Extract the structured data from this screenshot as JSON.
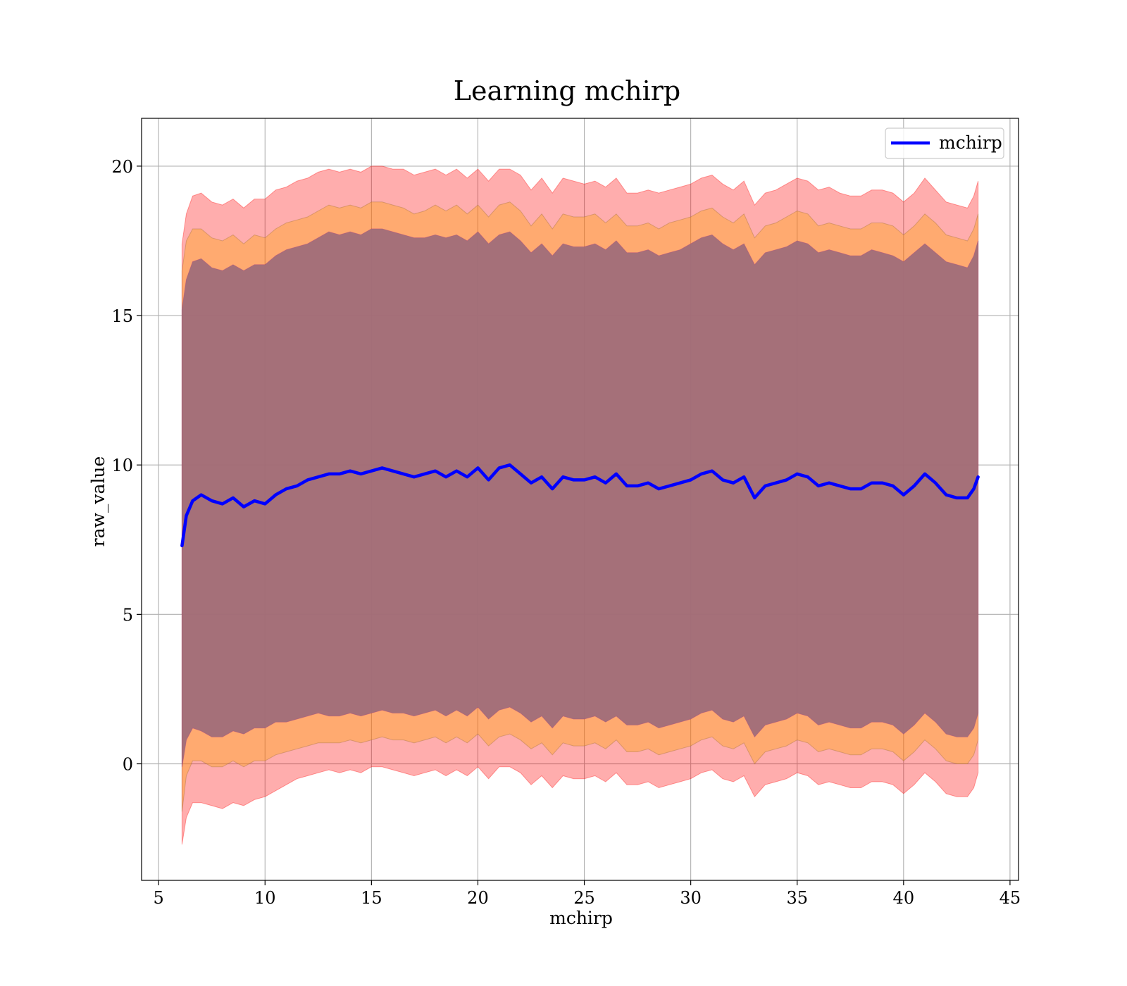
{
  "chart_data": {
    "type": "line",
    "title": "Learning mchirp",
    "xlabel": "mchirp",
    "ylabel": "raw_value",
    "xlim": [
      4.2,
      45.4
    ],
    "ylim": [
      -3.9,
      21.6
    ],
    "xticks": [
      5,
      10,
      15,
      20,
      25,
      30,
      35,
      40,
      45
    ],
    "yticks": [
      0,
      5,
      10,
      15,
      20
    ],
    "grid": true,
    "legend": {
      "position": "top-right",
      "entries": [
        "mchirp"
      ]
    },
    "colors": {
      "line": "#0000ff",
      "band_3sigma": "#ff0000",
      "band_2sigma": "#ffa500",
      "band_1sigma": "#800080",
      "inner_fill": "#a0707a",
      "grid": "#b0b0b0"
    },
    "series": [
      {
        "name": "mchirp",
        "x": [
          6.1,
          6.3,
          6.6,
          7.0,
          7.5,
          8.0,
          8.5,
          9.0,
          9.5,
          10.0,
          10.5,
          11.0,
          11.5,
          12.0,
          12.5,
          13.0,
          13.5,
          14.0,
          14.5,
          15.0,
          15.5,
          16.0,
          16.5,
          17.0,
          17.5,
          18.0,
          18.5,
          19.0,
          19.5,
          20.0,
          20.5,
          21.0,
          21.5,
          22.0,
          22.5,
          23.0,
          23.5,
          24.0,
          24.5,
          25.0,
          25.5,
          26.0,
          26.5,
          27.0,
          27.5,
          28.0,
          28.5,
          29.0,
          29.5,
          30.0,
          30.5,
          31.0,
          31.5,
          32.0,
          32.5,
          33.0,
          33.5,
          34.0,
          34.5,
          35.0,
          35.5,
          36.0,
          36.5,
          37.0,
          37.5,
          38.0,
          38.5,
          39.0,
          39.5,
          40.0,
          40.5,
          41.0,
          41.5,
          42.0,
          42.5,
          43.0,
          43.3,
          43.5
        ],
        "y": [
          7.3,
          8.3,
          8.8,
          9.0,
          8.8,
          8.7,
          8.9,
          8.6,
          8.8,
          8.7,
          9.0,
          9.2,
          9.3,
          9.5,
          9.6,
          9.7,
          9.7,
          9.8,
          9.7,
          9.8,
          9.9,
          9.8,
          9.7,
          9.6,
          9.7,
          9.8,
          9.6,
          9.8,
          9.6,
          9.9,
          9.5,
          9.9,
          10.0,
          9.7,
          9.4,
          9.6,
          9.2,
          9.6,
          9.5,
          9.5,
          9.6,
          9.4,
          9.7,
          9.3,
          9.3,
          9.4,
          9.2,
          9.3,
          9.4,
          9.5,
          9.7,
          9.8,
          9.5,
          9.4,
          9.6,
          8.9,
          9.3,
          9.4,
          9.5,
          9.7,
          9.6,
          9.3,
          9.4,
          9.3,
          9.2,
          9.2,
          9.4,
          9.4,
          9.3,
          9.0,
          9.3,
          9.7,
          9.4,
          9.0,
          8.9,
          8.9,
          9.2,
          9.6
        ]
      }
    ],
    "bands": {
      "x": [
        6.1,
        6.3,
        6.6,
        7.0,
        7.5,
        8.0,
        8.5,
        9.0,
        9.5,
        10.0,
        10.5,
        11.0,
        11.5,
        12.0,
        12.5,
        13.0,
        13.5,
        14.0,
        14.5,
        15.0,
        15.5,
        16.0,
        16.5,
        17.0,
        17.5,
        18.0,
        18.5,
        19.0,
        19.5,
        20.0,
        20.5,
        21.0,
        21.5,
        22.0,
        22.5,
        23.0,
        23.5,
        24.0,
        24.5,
        25.0,
        25.5,
        26.0,
        26.5,
        27.0,
        27.5,
        28.0,
        28.5,
        29.0,
        29.5,
        30.0,
        30.5,
        31.0,
        31.5,
        32.0,
        32.5,
        33.0,
        33.5,
        34.0,
        34.5,
        35.0,
        35.5,
        36.0,
        36.5,
        37.0,
        37.5,
        38.0,
        38.5,
        39.0,
        39.5,
        40.0,
        40.5,
        41.0,
        41.5,
        42.0,
        42.5,
        43.0,
        43.3,
        43.5
      ],
      "upper_3sigma": [
        17.4,
        18.4,
        19.0,
        19.1,
        18.8,
        18.7,
        18.9,
        18.6,
        18.9,
        18.9,
        19.2,
        19.3,
        19.5,
        19.6,
        19.8,
        19.9,
        19.8,
        19.9,
        19.8,
        20.0,
        20.0,
        19.9,
        19.9,
        19.7,
        19.8,
        19.9,
        19.7,
        19.9,
        19.6,
        19.9,
        19.5,
        19.9,
        19.9,
        19.7,
        19.2,
        19.6,
        19.1,
        19.6,
        19.5,
        19.4,
        19.5,
        19.3,
        19.6,
        19.1,
        19.1,
        19.2,
        19.1,
        19.2,
        19.3,
        19.4,
        19.6,
        19.7,
        19.4,
        19.2,
        19.5,
        18.7,
        19.1,
        19.2,
        19.4,
        19.6,
        19.5,
        19.2,
        19.3,
        19.1,
        19.0,
        19.0,
        19.2,
        19.2,
        19.1,
        18.8,
        19.1,
        19.6,
        19.2,
        18.8,
        18.7,
        18.6,
        19.0,
        19.5
      ],
      "upper_2sigma": [
        16.5,
        17.5,
        17.9,
        17.9,
        17.6,
        17.5,
        17.7,
        17.4,
        17.7,
        17.6,
        17.9,
        18.1,
        18.2,
        18.3,
        18.5,
        18.7,
        18.6,
        18.7,
        18.6,
        18.8,
        18.8,
        18.7,
        18.6,
        18.4,
        18.5,
        18.7,
        18.5,
        18.7,
        18.4,
        18.7,
        18.3,
        18.7,
        18.8,
        18.5,
        18.0,
        18.4,
        17.9,
        18.4,
        18.3,
        18.3,
        18.4,
        18.1,
        18.4,
        18.0,
        18.0,
        18.1,
        17.9,
        18.1,
        18.2,
        18.3,
        18.5,
        18.6,
        18.3,
        18.1,
        18.4,
        17.6,
        18.0,
        18.1,
        18.3,
        18.5,
        18.4,
        18.0,
        18.1,
        18.0,
        17.9,
        17.9,
        18.1,
        18.1,
        18.0,
        17.7,
        18.0,
        18.4,
        18.1,
        17.7,
        17.6,
        17.5,
        17.9,
        18.4
      ],
      "upper_1sigma": [
        15.2,
        16.2,
        16.8,
        16.9,
        16.6,
        16.5,
        16.7,
        16.5,
        16.7,
        16.7,
        17.0,
        17.2,
        17.3,
        17.4,
        17.6,
        17.8,
        17.7,
        17.8,
        17.7,
        17.9,
        17.9,
        17.8,
        17.7,
        17.6,
        17.6,
        17.7,
        17.6,
        17.7,
        17.5,
        17.8,
        17.4,
        17.7,
        17.8,
        17.5,
        17.1,
        17.4,
        17.0,
        17.4,
        17.3,
        17.3,
        17.4,
        17.2,
        17.5,
        17.1,
        17.1,
        17.2,
        17.0,
        17.1,
        17.2,
        17.4,
        17.6,
        17.7,
        17.4,
        17.2,
        17.4,
        16.7,
        17.1,
        17.2,
        17.3,
        17.5,
        17.4,
        17.1,
        17.2,
        17.1,
        17.0,
        17.0,
        17.2,
        17.1,
        17.0,
        16.8,
        17.1,
        17.4,
        17.1,
        16.8,
        16.7,
        16.6,
        17.0,
        17.5
      ],
      "lower_1sigma": [
        -0.1,
        0.8,
        1.2,
        1.1,
        0.9,
        0.9,
        1.1,
        1.0,
        1.2,
        1.2,
        1.4,
        1.4,
        1.5,
        1.6,
        1.7,
        1.6,
        1.6,
        1.7,
        1.6,
        1.7,
        1.8,
        1.7,
        1.7,
        1.6,
        1.7,
        1.8,
        1.6,
        1.8,
        1.6,
        1.9,
        1.5,
        1.8,
        1.9,
        1.7,
        1.4,
        1.6,
        1.2,
        1.6,
        1.5,
        1.5,
        1.6,
        1.4,
        1.6,
        1.3,
        1.3,
        1.4,
        1.2,
        1.3,
        1.4,
        1.5,
        1.7,
        1.8,
        1.5,
        1.4,
        1.6,
        0.9,
        1.3,
        1.4,
        1.5,
        1.7,
        1.6,
        1.3,
        1.4,
        1.3,
        1.2,
        1.2,
        1.4,
        1.4,
        1.3,
        1.0,
        1.3,
        1.7,
        1.4,
        1.0,
        0.9,
        0.9,
        1.2,
        1.7
      ],
      "lower_2sigma": [
        -1.6,
        -0.4,
        0.1,
        0.1,
        -0.1,
        -0.1,
        0.1,
        -0.1,
        0.1,
        0.1,
        0.3,
        0.4,
        0.5,
        0.6,
        0.7,
        0.7,
        0.7,
        0.8,
        0.7,
        0.8,
        0.9,
        0.8,
        0.8,
        0.7,
        0.8,
        0.9,
        0.7,
        0.9,
        0.7,
        1.0,
        0.6,
        0.9,
        1.0,
        0.8,
        0.5,
        0.7,
        0.3,
        0.7,
        0.6,
        0.6,
        0.7,
        0.5,
        0.8,
        0.4,
        0.4,
        0.5,
        0.3,
        0.4,
        0.5,
        0.6,
        0.8,
        0.9,
        0.6,
        0.5,
        0.7,
        0.0,
        0.4,
        0.5,
        0.6,
        0.8,
        0.7,
        0.4,
        0.5,
        0.4,
        0.3,
        0.3,
        0.5,
        0.5,
        0.4,
        0.1,
        0.4,
        0.8,
        0.5,
        0.1,
        0.0,
        0.0,
        0.3,
        0.8
      ],
      "lower_3sigma": [
        -2.7,
        -1.8,
        -1.3,
        -1.3,
        -1.4,
        -1.5,
        -1.3,
        -1.4,
        -1.2,
        -1.1,
        -0.9,
        -0.7,
        -0.5,
        -0.4,
        -0.3,
        -0.2,
        -0.3,
        -0.2,
        -0.3,
        -0.1,
        -0.1,
        -0.2,
        -0.3,
        -0.4,
        -0.3,
        -0.2,
        -0.4,
        -0.2,
        -0.4,
        -0.1,
        -0.5,
        -0.1,
        -0.1,
        -0.3,
        -0.7,
        -0.4,
        -0.8,
        -0.4,
        -0.5,
        -0.5,
        -0.4,
        -0.6,
        -0.3,
        -0.7,
        -0.7,
        -0.6,
        -0.8,
        -0.7,
        -0.6,
        -0.5,
        -0.3,
        -0.2,
        -0.5,
        -0.6,
        -0.4,
        -1.1,
        -0.7,
        -0.6,
        -0.5,
        -0.3,
        -0.4,
        -0.7,
        -0.6,
        -0.7,
        -0.8,
        -0.8,
        -0.6,
        -0.6,
        -0.7,
        -1.0,
        -0.7,
        -0.3,
        -0.6,
        -1.0,
        -1.1,
        -1.1,
        -0.8,
        -0.3
      ]
    }
  }
}
